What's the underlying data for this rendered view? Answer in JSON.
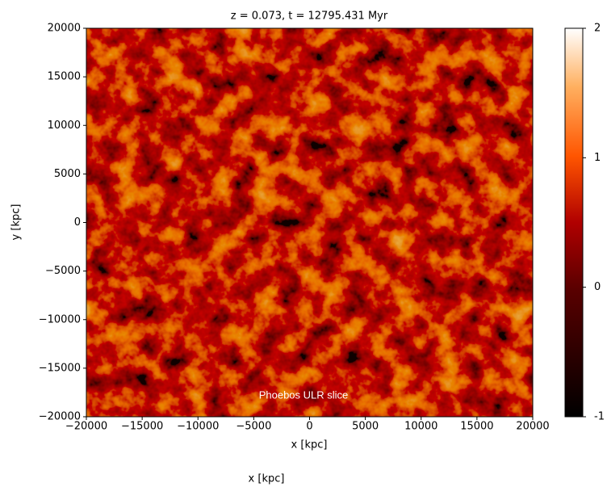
{
  "chart_data": {
    "type": "image",
    "title": "z = 0.073, t = 12795.431 Myr",
    "x_label": "x [kpc]",
    "y_label": "y [kpc]",
    "xlim": [
      -20000,
      20000
    ],
    "ylim": [
      -20000,
      20000
    ],
    "xticks": [
      {
        "value": -20000,
        "label": "−20000"
      },
      {
        "value": -15000,
        "label": "−15000"
      },
      {
        "value": -10000,
        "label": "−10000"
      },
      {
        "value": -5000,
        "label": "−5000"
      },
      0,
      5000,
      10000,
      15000,
      20000
    ],
    "yticks": [
      {
        "value": -20000,
        "label": "−20000"
      },
      {
        "value": -15000,
        "label": "−15000"
      },
      {
        "value": -10000,
        "label": "−10000"
      },
      {
        "value": -5000,
        "label": "−5000"
      },
      0,
      5000,
      10000,
      15000,
      20000
    ],
    "colorbar_lim": [
      -1,
      2
    ],
    "colorbar_ticks": [
      {
        "value": -1,
        "label": "-1"
      },
      0,
      1,
      2
    ],
    "overlay_text": "Phoebos ULR slice",
    "second_x_label": "x [kpc]"
  }
}
